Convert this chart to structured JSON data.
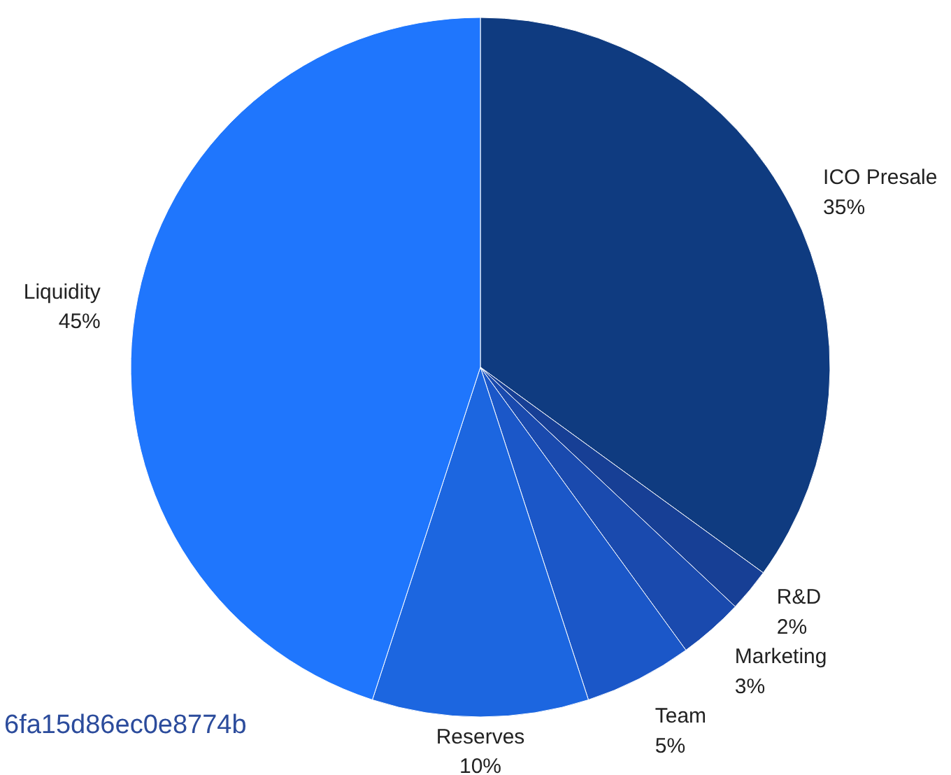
{
  "chart_data": {
    "type": "pie",
    "categories": [
      "ICO Presale",
      "R&D",
      "Marketing",
      "Team",
      "Reserves",
      "Liquidity"
    ],
    "values": [
      35,
      2,
      3,
      5,
      10,
      45
    ],
    "value_labels": [
      "35%",
      "2%",
      "3%",
      "5%",
      "10%",
      "45%"
    ],
    "colors": [
      "#0f3b80",
      "#173f95",
      "#1a4aae",
      "#1b57c8",
      "#1c66e0",
      "#1f76fd"
    ],
    "annotations": [
      "6fa15d86ec0e8774b"
    ]
  }
}
